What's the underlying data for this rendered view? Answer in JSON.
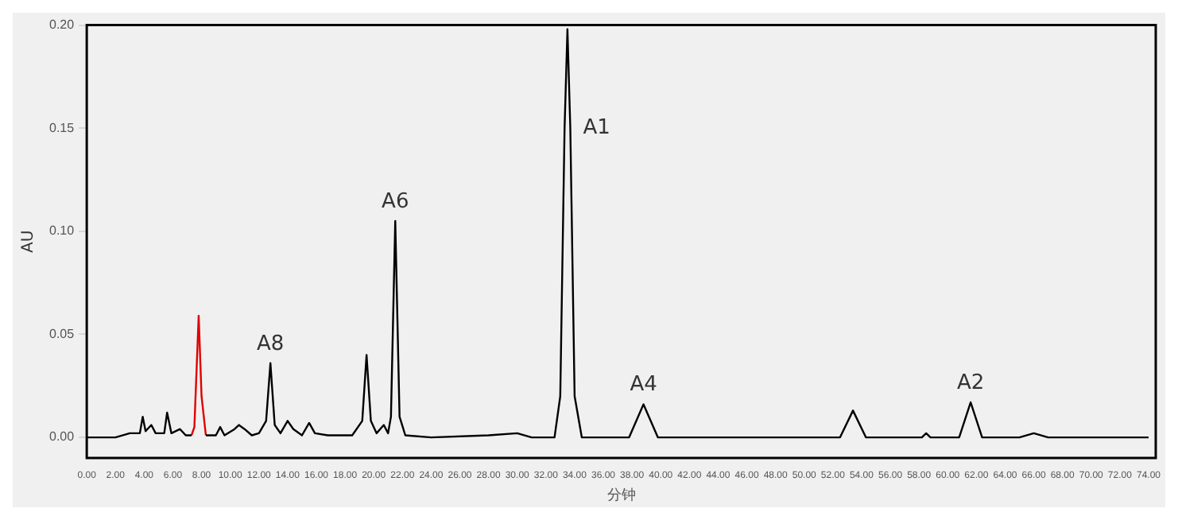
{
  "chart_data": {
    "type": "line",
    "xlabel": "分钟",
    "ylabel": "AU",
    "xlim": [
      0,
      74.5
    ],
    "ylim": [
      -0.01,
      0.2
    ],
    "xticks": [
      {
        "value": 0,
        "label": "0.00"
      },
      {
        "value": 2,
        "label": "2.00"
      },
      {
        "value": 4,
        "label": "4.00"
      },
      {
        "value": 6,
        "label": "6.00"
      },
      {
        "value": 8,
        "label": "8.00"
      },
      {
        "value": 10,
        "label": "10.00"
      },
      {
        "value": 12,
        "label": "12.00"
      },
      {
        "value": 14,
        "label": "14.00"
      },
      {
        "value": 16,
        "label": "16.00"
      },
      {
        "value": 18,
        "label": "18.00"
      },
      {
        "value": 20,
        "label": "20.00"
      },
      {
        "value": 22,
        "label": "22.00"
      },
      {
        "value": 24,
        "label": "24.00"
      },
      {
        "value": 26,
        "label": "26.00"
      },
      {
        "value": 28,
        "label": "28.00"
      },
      {
        "value": 30,
        "label": "30.00"
      },
      {
        "value": 32,
        "label": "32.00"
      },
      {
        "value": 34,
        "label": "34.00"
      },
      {
        "value": 36,
        "label": "36.00"
      },
      {
        "value": 38,
        "label": "38.00"
      },
      {
        "value": 40,
        "label": "40.00"
      },
      {
        "value": 42,
        "label": "42.00"
      },
      {
        "value": 44,
        "label": "44.00"
      },
      {
        "value": 46,
        "label": "46.00"
      },
      {
        "value": 48,
        "label": "48.00"
      },
      {
        "value": 50,
        "label": "50.00"
      },
      {
        "value": 52,
        "label": "52.00"
      },
      {
        "value": 54,
        "label": "54.00"
      },
      {
        "value": 56,
        "label": "56.00"
      },
      {
        "value": 58,
        "label": "58.00"
      },
      {
        "value": 60,
        "label": "60.00"
      },
      {
        "value": 62,
        "label": "62.00"
      },
      {
        "value": 64,
        "label": "64.00"
      },
      {
        "value": 66,
        "label": "66.00"
      },
      {
        "value": 68,
        "label": "68.00"
      },
      {
        "value": 70,
        "label": "70.00"
      },
      {
        "value": 72,
        "label": "72.00"
      },
      {
        "value": 74,
        "label": "74.00"
      }
    ],
    "yticks": [
      {
        "value": 0,
        "label": "0.00"
      },
      {
        "value": 0.05,
        "label": "0.05"
      },
      {
        "value": 0.1,
        "label": "0.10"
      },
      {
        "value": 0.15,
        "label": "0.15"
      },
      {
        "value": 0.2,
        "label": "0.20"
      }
    ],
    "grid": false,
    "legend": false,
    "marker": "none",
    "line_style": "solid",
    "series": [
      {
        "color": "#000000",
        "x": [
          0,
          2,
          3,
          3.7,
          3.9,
          4.1,
          4.5,
          4.8,
          5.4,
          5.6,
          5.9,
          6.5,
          6.9,
          7.3,
          7.5,
          8.3,
          9,
          9.3,
          9.6,
          10.3,
          10.6,
          11,
          11.5,
          12,
          12.5,
          12.8,
          13.1,
          13.5,
          14,
          14.4,
          15,
          15.5,
          15.9,
          16.8,
          18.5,
          19.2,
          19.5,
          19.8,
          20.2,
          20.7,
          21,
          21.2,
          21.5,
          21.8,
          22.2,
          24,
          28,
          30,
          31,
          32.6,
          33,
          33.3,
          33.5,
          33.7,
          34,
          34.5,
          37.8,
          38.8,
          39.8,
          52.5,
          53.4,
          54.3,
          58.2,
          58.5,
          58.8,
          60.8,
          61.6,
          62.4,
          65,
          66,
          67,
          74
        ],
        "values": [
          0,
          0,
          0.002,
          0.002,
          0.01,
          0.003,
          0.006,
          0.002,
          0.002,
          0.012,
          0.002,
          0.004,
          0.001,
          0.001,
          null,
          0.001,
          0.001,
          0.005,
          0.001,
          0.004,
          0.006,
          0.004,
          0.001,
          0.002,
          0.008,
          0.036,
          0.006,
          0.002,
          0.008,
          0.004,
          0.001,
          0.007,
          0.002,
          0.001,
          0.001,
          0.008,
          0.04,
          0.008,
          0.002,
          0.006,
          0.002,
          0.01,
          0.105,
          0.01,
          0.001,
          0,
          0.001,
          0.002,
          0,
          0,
          0.02,
          0.15,
          0.198,
          0.15,
          0.02,
          0,
          0,
          0.016,
          0,
          0,
          0.013,
          0,
          0,
          0.002,
          0,
          0,
          0.017,
          0,
          0,
          0.002,
          0,
          0
        ]
      },
      {
        "color": "#e00000",
        "x": [
          7.3,
          7.5,
          7.8,
          8,
          8.3
        ],
        "values": [
          0.001,
          0.005,
          0.059,
          0.02,
          0.001
        ]
      }
    ],
    "annotations": [
      {
        "text": "A8",
        "x": 12.8,
        "y": 0.036
      },
      {
        "text": "A6",
        "x": 21.5,
        "y": 0.105
      },
      {
        "text": "A1",
        "x": 33.7,
        "y": 0.15
      },
      {
        "text": "A4",
        "x": 38.8,
        "y": 0.016
      },
      {
        "text": "A2",
        "x": 61.6,
        "y": 0.017
      }
    ]
  }
}
